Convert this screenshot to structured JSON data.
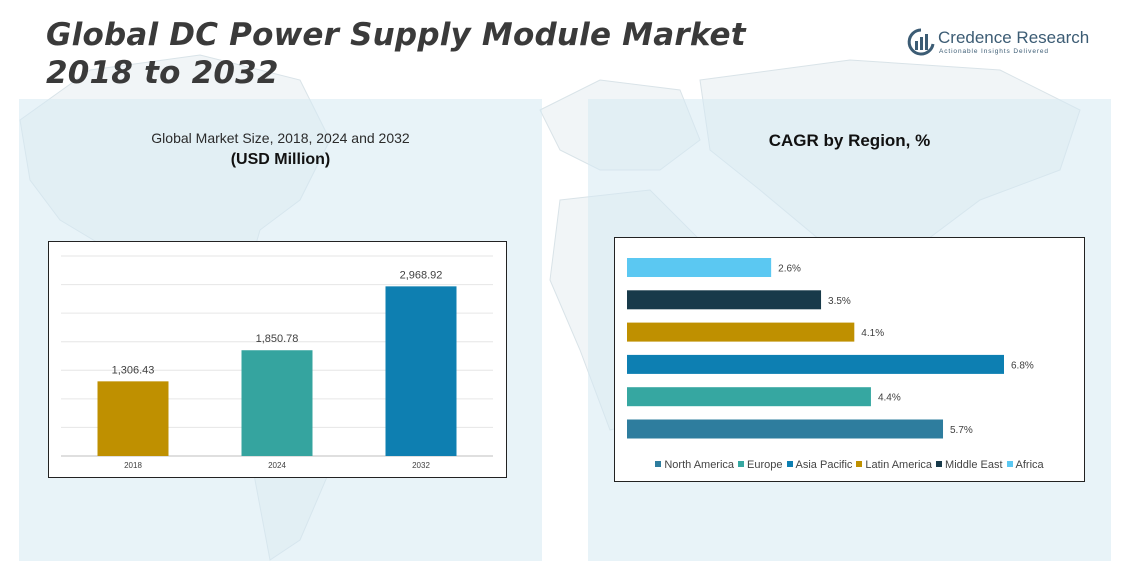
{
  "header": {
    "title_line1": "Global DC Power Supply Module Market",
    "title_line2": "2018 to 2032"
  },
  "logo": {
    "name": "Credence Research",
    "tagline": "Actionable Insights Delivered",
    "icon": "brand-logo-icon"
  },
  "left_panel": {
    "subtitle": "Global Market Size, 2018, 2024 and 2032",
    "unit": "(USD Million)"
  },
  "right_panel": {
    "title": "CAGR by Region, %"
  },
  "chart_data": [
    {
      "type": "bar",
      "title": "Global Market Size, 2018, 2024 and 2032",
      "ylabel": "(USD Million)",
      "categories": [
        "2018",
        "2024",
        "2032"
      ],
      "values": [
        1306.43,
        1850.78,
        2968.92
      ],
      "value_labels": [
        "1,306.43",
        "1,850.78",
        "2,968.92"
      ],
      "colors": [
        "#bf9000",
        "#35a49f",
        "#0e7fb1"
      ],
      "ylim": [
        0,
        3500
      ],
      "grid": true
    },
    {
      "type": "bar",
      "orientation": "horizontal",
      "title": "CAGR by Region, %",
      "categories": [
        "North America",
        "Europe",
        "Asia Pacific",
        "Latin America",
        "Middle East",
        "Africa"
      ],
      "values": [
        5.7,
        4.4,
        6.8,
        4.1,
        3.5,
        2.6
      ],
      "value_labels": [
        "5.7%",
        "4.4%",
        "6.8%",
        "4.1%",
        "3.5%",
        "2.6%"
      ],
      "colors": [
        "#2e7d9e",
        "#36a7a1",
        "#0d7fb2",
        "#bf9000",
        "#183a4a",
        "#5bc8f2"
      ],
      "xlim": [
        0,
        6.8
      ],
      "legend": "bottom",
      "grid": false
    }
  ]
}
